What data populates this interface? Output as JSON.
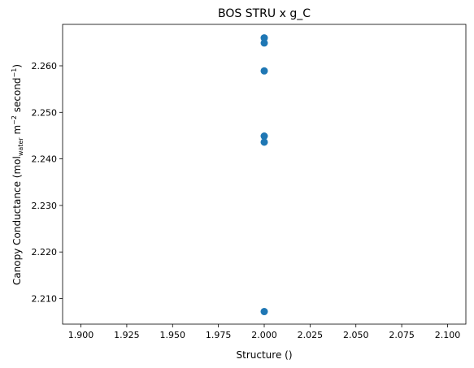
{
  "chart_data": {
    "type": "scatter",
    "title": "BOS STRU x g_C",
    "xlabel": "Structure ()",
    "ylabel": {
      "main": "Canopy Conductance (mol",
      "sub": "water",
      "mid": " m",
      "sup1": "−2",
      "mid2": " second",
      "sup2": "−1",
      "end": ")"
    },
    "xlim": [
      1.89,
      2.11
    ],
    "ylim": [
      2.2045,
      2.2689
    ],
    "xticks": [
      "1.900",
      "1.925",
      "1.950",
      "1.975",
      "2.000",
      "2.025",
      "2.050",
      "2.075",
      "2.100"
    ],
    "xtick_values": [
      1.9,
      1.925,
      1.95,
      1.975,
      2.0,
      2.025,
      2.05,
      2.075,
      2.1
    ],
    "yticks": [
      "2.210",
      "2.220",
      "2.230",
      "2.240",
      "2.250",
      "2.260"
    ],
    "ytick_values": [
      2.21,
      2.22,
      2.23,
      2.24,
      2.25,
      2.26
    ],
    "grid": false,
    "marker_color": "#1f77b4",
    "points": [
      {
        "x": 2.0,
        "y": 2.266
      },
      {
        "x": 2.0,
        "y": 2.2649
      },
      {
        "x": 2.0,
        "y": 2.2589
      },
      {
        "x": 2.0,
        "y": 2.2449
      },
      {
        "x": 2.0,
        "y": 2.2436
      },
      {
        "x": 2.0,
        "y": 2.2072
      }
    ]
  }
}
